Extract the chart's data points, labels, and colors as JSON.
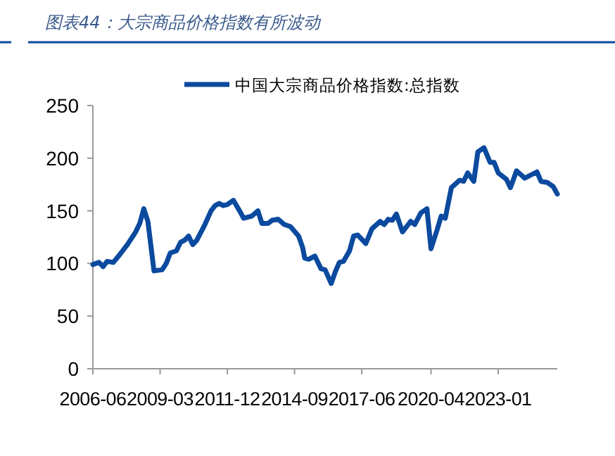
{
  "chart_data": {
    "type": "line",
    "title": "图表44：大宗商品价格指数有所波动",
    "x": [
      "2006-06",
      "2006-09",
      "2006-11",
      "2007-01",
      "2007-04",
      "2007-07",
      "2007-11",
      "2008-03",
      "2008-05",
      "2008-07",
      "2008-09",
      "2008-12",
      "2009-04",
      "2009-06",
      "2009-08",
      "2009-11",
      "2010-01",
      "2010-03",
      "2010-05",
      "2010-07",
      "2010-09",
      "2011-01",
      "2011-04",
      "2011-06",
      "2011-08",
      "2011-10",
      "2011-12",
      "2012-03",
      "2012-06",
      "2012-08",
      "2012-12",
      "2013-03",
      "2013-05",
      "2013-08",
      "2013-10",
      "2014-01",
      "2014-04",
      "2014-07",
      "2014-11",
      "2015-01",
      "2015-02",
      "2015-04",
      "2015-07",
      "2015-10",
      "2015-12",
      "2016-03",
      "2016-05",
      "2016-07",
      "2016-09",
      "2016-12",
      "2017-02",
      "2017-04",
      "2017-08",
      "2017-11",
      "2018-03",
      "2018-05",
      "2018-07",
      "2018-09",
      "2018-11",
      "2019-02",
      "2019-06",
      "2019-08",
      "2019-11",
      "2020-02",
      "2020-04",
      "2020-07",
      "2020-09",
      "2020-11",
      "2021-02",
      "2021-06",
      "2021-08",
      "2021-10",
      "2022-01",
      "2022-03",
      "2022-06",
      "2022-09",
      "2022-11",
      "2023-01",
      "2023-05",
      "2023-07",
      "2023-10",
      "2024-02",
      "2024-05",
      "2024-08",
      "2024-10",
      "2025-01",
      "2025-04",
      "2025-06"
    ],
    "series": [
      {
        "name": "中国大宗商品价格指数:总指数",
        "color": "#0b4a9e",
        "values": [
          99,
          101,
          97,
          102,
          101,
          108,
          118,
          130,
          138,
          152,
          140,
          93,
          94,
          100,
          110,
          112,
          120,
          122,
          126,
          118,
          122,
          137,
          150,
          155,
          157,
          155,
          156,
          160,
          150,
          143,
          145,
          150,
          138,
          138,
          141,
          142,
          137,
          135,
          126,
          115,
          105,
          104,
          107,
          95,
          94,
          81,
          92,
          101,
          102,
          112,
          126,
          127,
          119,
          133,
          140,
          137,
          142,
          141,
          147,
          130,
          140,
          137,
          148,
          152,
          114,
          132,
          145,
          143,
          172,
          179,
          178,
          186,
          178,
          206,
          210,
          196,
          196,
          186,
          180,
          172,
          188,
          181,
          184,
          187,
          178,
          177,
          173,
          166
        ]
      }
    ],
    "xlim": [
      "2006-06",
      "2025-06"
    ],
    "xticks": [
      "2006-06",
      "2009-03",
      "2011-12",
      "2014-09",
      "2017-06",
      "2020-04",
      "2023-01"
    ],
    "ylim": [
      0,
      250
    ],
    "yticks": [
      0,
      50,
      100,
      150,
      200,
      250
    ],
    "grid": false,
    "legend": "top",
    "line_style": "solid",
    "marker": "none"
  }
}
